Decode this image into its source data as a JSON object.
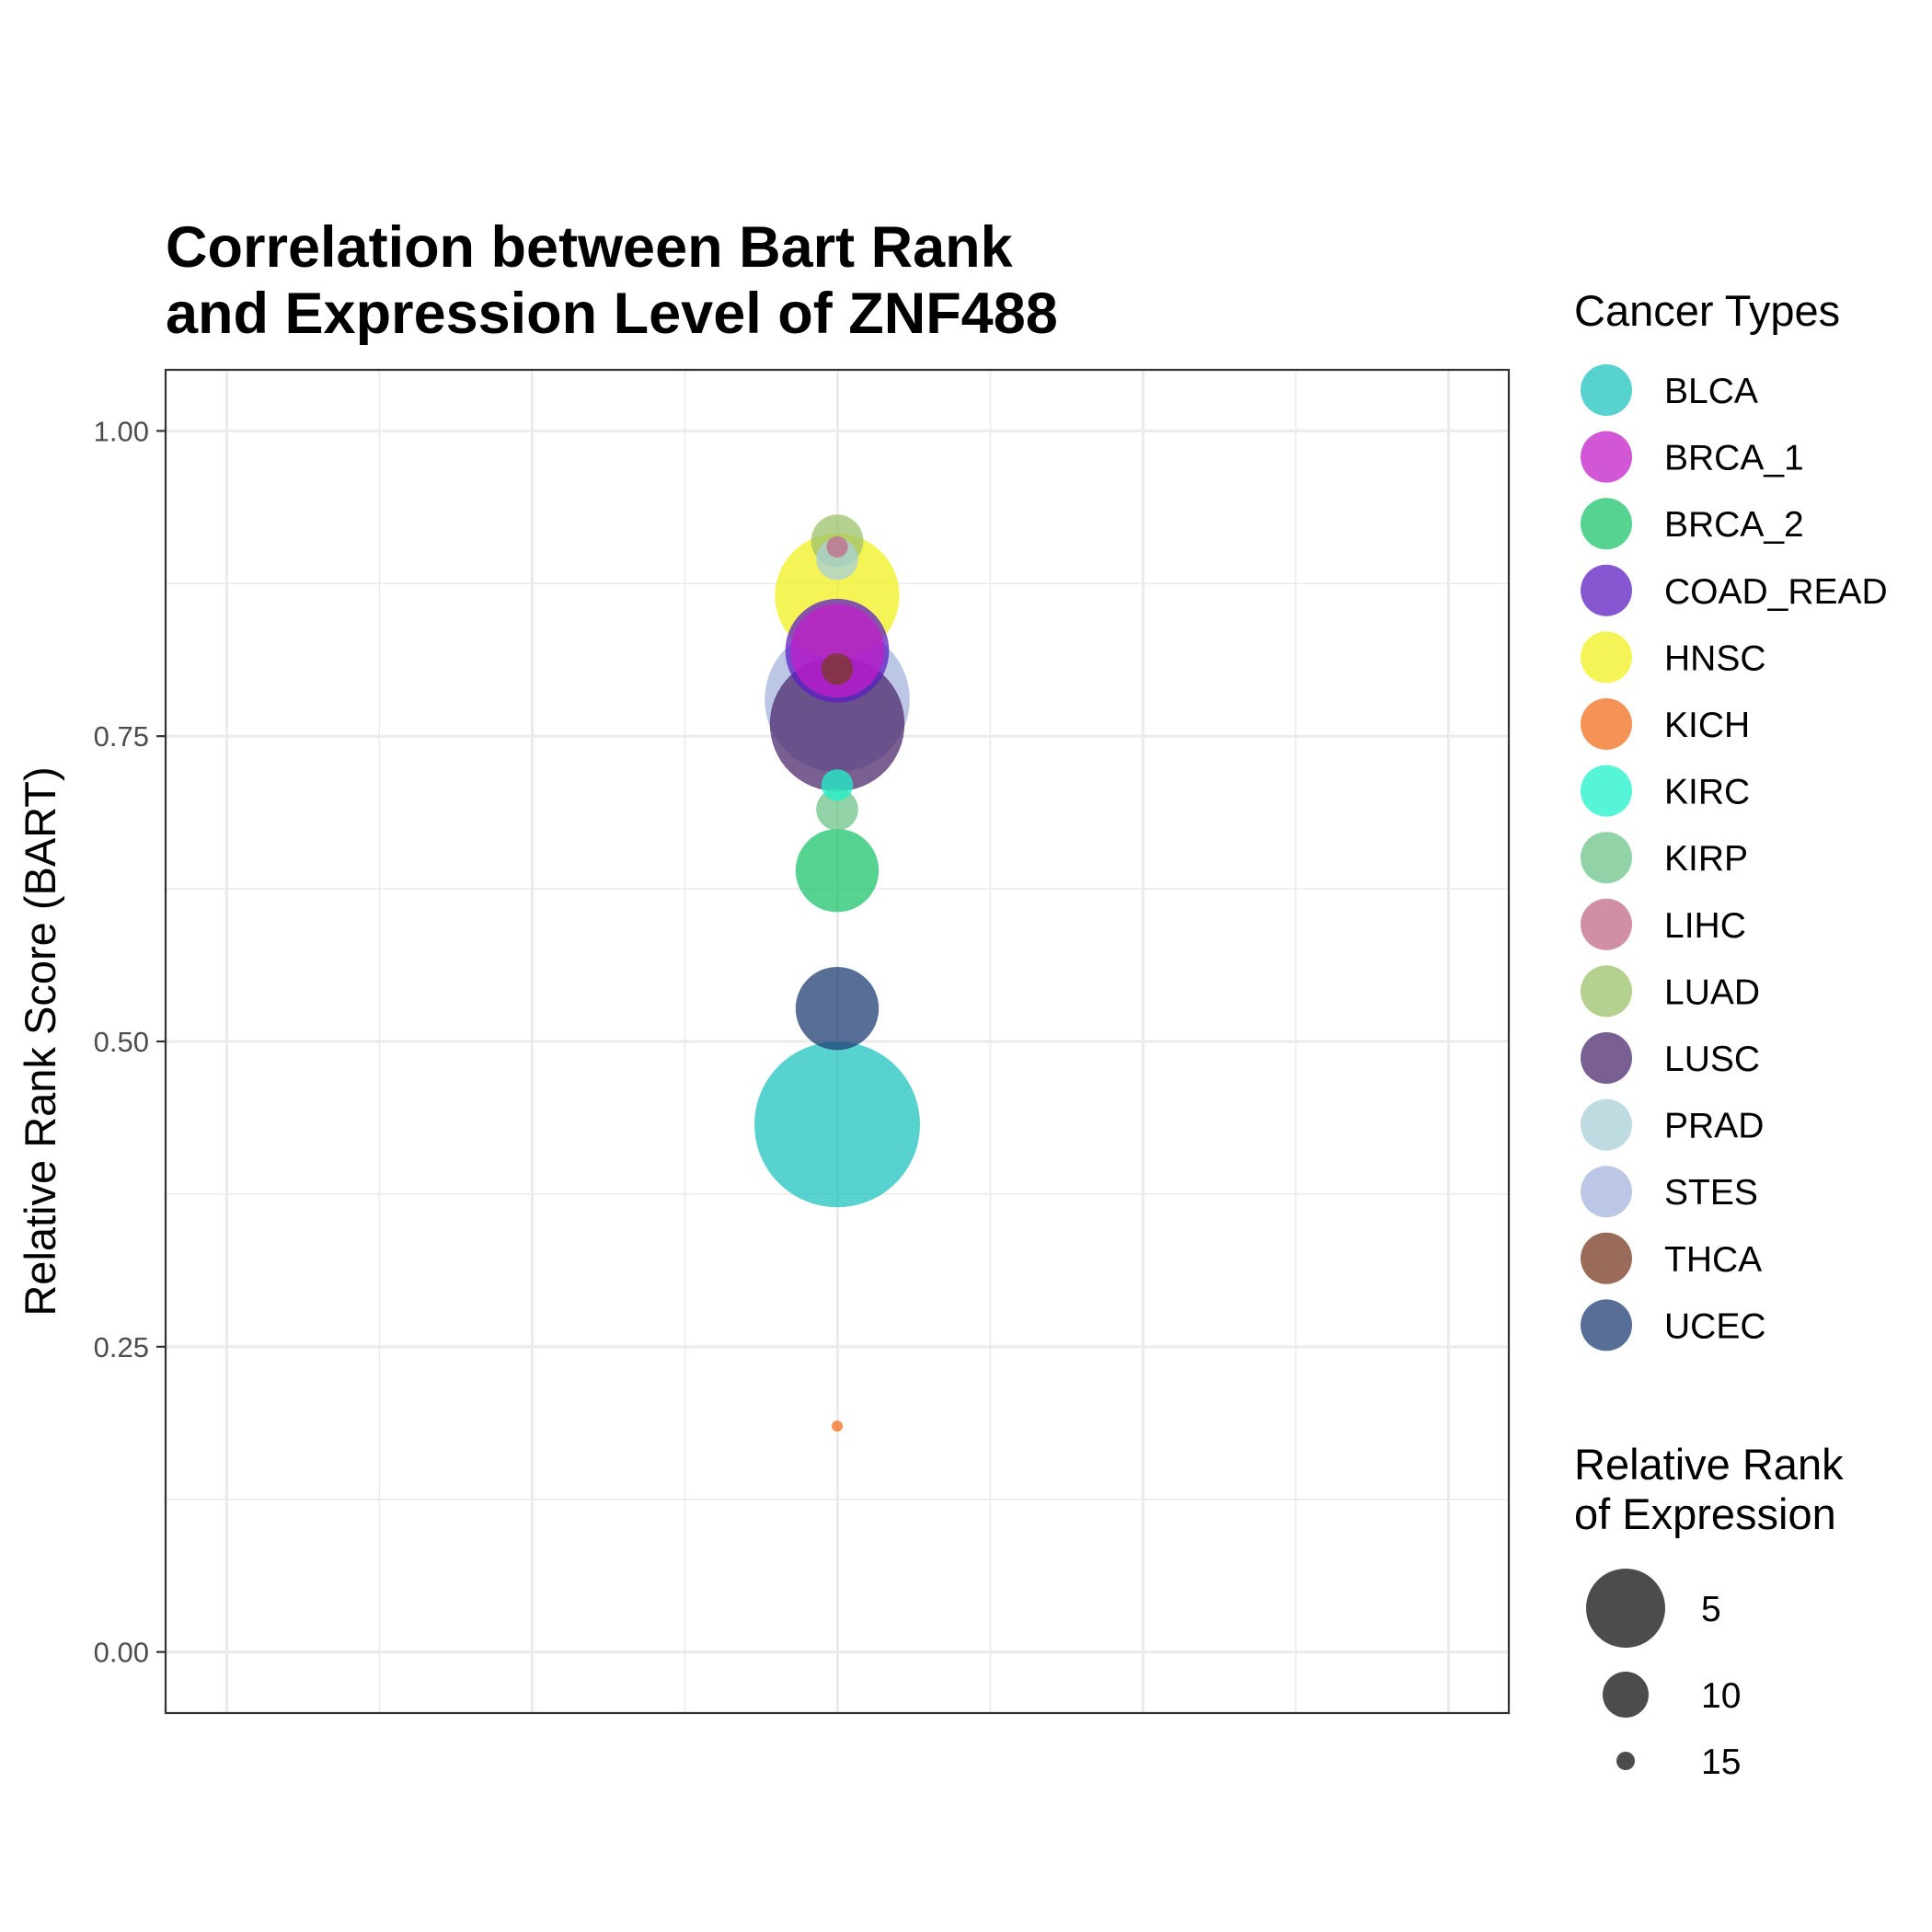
{
  "chart_data": {
    "type": "scatter",
    "title": [
      "Correlation between Bart Rank",
      "and Expression Level of ZNF488"
    ],
    "xlabel": "",
    "ylabel": "Relative Rank Score (BART)",
    "ylim": [
      -0.05,
      1.05
    ],
    "y_ticks": [
      {
        "value": 0.0,
        "label": "0.00"
      },
      {
        "value": 0.25,
        "label": "0.25"
      },
      {
        "value": 0.5,
        "label": "0.50"
      },
      {
        "value": 0.75,
        "label": "0.75"
      },
      {
        "value": 1.0,
        "label": "1.00"
      }
    ],
    "grid": true,
    "legend_position": "right",
    "color_legend_title": "Cancer Types",
    "size_legend_title": [
      "Relative Rank",
      "of Expression"
    ],
    "size_legend": [
      {
        "label": "5",
        "value": 5
      },
      {
        "label": "10",
        "value": 10
      },
      {
        "label": "15",
        "value": 15
      }
    ],
    "series": [
      {
        "name": "BLCA",
        "color": "#1FC3BE",
        "y": 0.432,
        "size": 1
      },
      {
        "name": "BRCA_1",
        "color": "#C21FC9",
        "y": 0.82,
        "size": 8
      },
      {
        "name": "BRCA_2",
        "color": "#1FC46C",
        "y": 0.64,
        "size": 9
      },
      {
        "name": "COAD_READ",
        "color": "#5E1FC1",
        "y": 0.82,
        "size": 7
      },
      {
        "name": "HNSC",
        "color": "#F0F01F",
        "y": 0.865,
        "size": 5
      },
      {
        "name": "KICH",
        "color": "#F26F1F",
        "y": 0.185,
        "size": 16
      },
      {
        "name": "KIRC",
        "color": "#1FF2C9",
        "y": 0.71,
        "size": 14
      },
      {
        "name": "KIRP",
        "color": "#6CC38A",
        "y": 0.69,
        "size": 13
      },
      {
        "name": "LIHC",
        "color": "#C26A8A",
        "y": 0.905,
        "size": 15
      },
      {
        "name": "LUAD",
        "color": "#9CC26A",
        "y": 0.91,
        "size": 12
      },
      {
        "name": "LUSC",
        "color": "#4E2A6E",
        "y": 0.76,
        "size": 4
      },
      {
        "name": "PRAD",
        "color": "#A8CFD8",
        "y": 0.895,
        "size": 13
      },
      {
        "name": "STES",
        "color": "#A6B4DC",
        "y": 0.78,
        "size": 3
      },
      {
        "name": "THCA",
        "color": "#7A3A22",
        "y": 0.805,
        "size": 14
      },
      {
        "name": "UCEC",
        "color": "#1F3F74",
        "y": 0.527,
        "size": 9
      }
    ]
  }
}
